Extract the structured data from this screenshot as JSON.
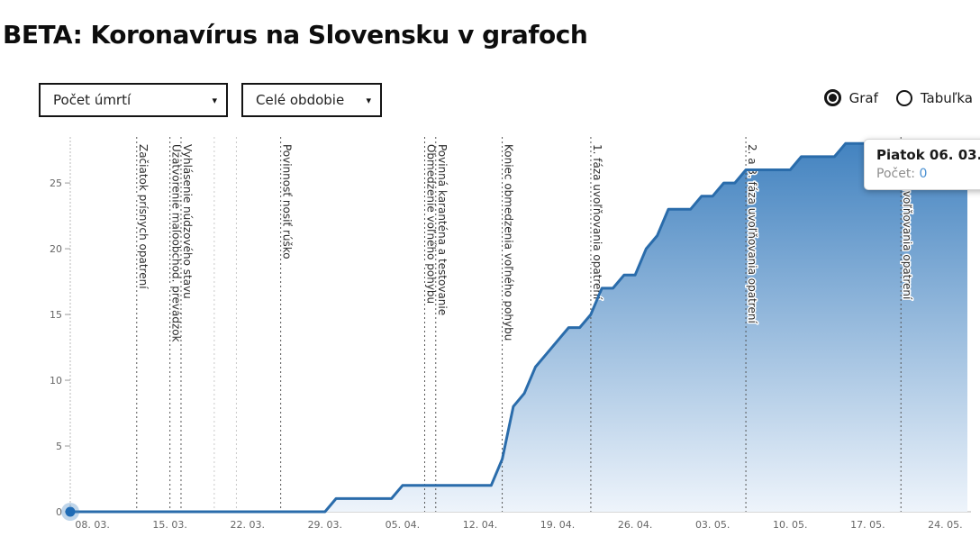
{
  "page": {
    "title": "BETA: Koronavírus na Slovensku v grafoch"
  },
  "controls": {
    "metric_select": {
      "value": "Počet úmrtí",
      "caret": "▾"
    },
    "period_select": {
      "value": "Celé obdobie",
      "caret": "▾"
    },
    "view_toggle": {
      "options": [
        {
          "label": "Graf",
          "selected": true
        },
        {
          "label": "Tabuľka",
          "selected": false
        }
      ]
    }
  },
  "tooltip": {
    "title": "Piatok 06. 03.",
    "label": "Počet:",
    "value": "0"
  },
  "chart_data": {
    "type": "area",
    "title": "Počet úmrtí — Celé obdobie",
    "xlabel": "",
    "ylabel": "",
    "ylim": [
      0,
      28.5
    ],
    "grid": false,
    "legend": "none",
    "y_ticks": [
      0,
      5,
      10,
      15,
      20,
      25
    ],
    "x_tick_indices": [
      2,
      9,
      16,
      23,
      30,
      37,
      44,
      51,
      58,
      65,
      72,
      79
    ],
    "x": [
      "06. 03.",
      "07. 03.",
      "08. 03.",
      "09. 03.",
      "10. 03.",
      "11. 03.",
      "12. 03.",
      "13. 03.",
      "14. 03.",
      "15. 03.",
      "16. 03.",
      "17. 03.",
      "18. 03.",
      "19. 03.",
      "20. 03.",
      "21. 03.",
      "22. 03.",
      "23. 03.",
      "24. 03.",
      "25. 03.",
      "26. 03.",
      "27. 03.",
      "28. 03.",
      "29. 03.",
      "30. 03.",
      "31. 03.",
      "01. 04.",
      "02. 04.",
      "03. 04.",
      "04. 04.",
      "05. 04.",
      "06. 04.",
      "07. 04.",
      "08. 04.",
      "09. 04.",
      "10. 04.",
      "11. 04.",
      "12. 04.",
      "13. 04.",
      "14. 04.",
      "15. 04.",
      "16. 04.",
      "17. 04.",
      "18. 04.",
      "19. 04.",
      "20. 04.",
      "21. 04.",
      "22. 04.",
      "23. 04.",
      "24. 04.",
      "25. 04.",
      "26. 04.",
      "27. 04.",
      "28. 04.",
      "29. 04.",
      "30. 04.",
      "01. 05.",
      "02. 05.",
      "03. 05.",
      "04. 05.",
      "05. 05.",
      "06. 05.",
      "07. 05.",
      "08. 05.",
      "09. 05.",
      "10. 05.",
      "11. 05.",
      "12. 05.",
      "13. 05.",
      "14. 05.",
      "15. 05.",
      "16. 05.",
      "17. 05.",
      "18. 05.",
      "19. 05.",
      "20. 05.",
      "21. 05.",
      "22. 05.",
      "23. 05.",
      "24. 05.",
      "25. 05.",
      "26. 05."
    ],
    "values": [
      0,
      0,
      0,
      0,
      0,
      0,
      0,
      0,
      0,
      0,
      0,
      0,
      0,
      0,
      0,
      0,
      0,
      0,
      0,
      0,
      0,
      0,
      0,
      0,
      1,
      1,
      1,
      1,
      1,
      1,
      2,
      2,
      2,
      2,
      2,
      2,
      2,
      2,
      2,
      4,
      8,
      9,
      11,
      12,
      13,
      14,
      14,
      15,
      17,
      17,
      18,
      18,
      20,
      21,
      23,
      23,
      23,
      24,
      24,
      25,
      25,
      26,
      26,
      26,
      26,
      26,
      27,
      27,
      27,
      27,
      28,
      28,
      28,
      28,
      28,
      28,
      28,
      28,
      28,
      28,
      28,
      28
    ],
    "annotations": [
      {
        "date": "12. 03.",
        "day_index": 6,
        "label": "Začiatok prísnych opatrení",
        "style": "dark"
      },
      {
        "date": "15. 03.",
        "day_index": 9,
        "label": "Uzatvorenie maloobchod. prevádzok",
        "style": "dark"
      },
      {
        "date": "16. 03.",
        "day_index": 10,
        "label": "Vyhlásenie núdzového stavu",
        "style": "dark"
      },
      {
        "date": "19. 03.",
        "day_index": 13,
        "label": "",
        "style": "light"
      },
      {
        "date": "21. 03.",
        "day_index": 15,
        "label": "",
        "style": "light"
      },
      {
        "date": "25. 03.",
        "day_index": 19,
        "label": "Povinnosť nosiť rúško",
        "style": "dark"
      },
      {
        "date": "07. 04.",
        "day_index": 32,
        "label": "Obmedzenie voľného pohybu",
        "style": "dark"
      },
      {
        "date": "08. 04.",
        "day_index": 33,
        "label": "Povinná karanténa a testovanie",
        "style": "dark"
      },
      {
        "date": "14. 04.",
        "day_index": 39,
        "label": "Koniec obmedzenia voľného pohybu",
        "style": "dark"
      },
      {
        "date": "22. 04.",
        "day_index": 47,
        "label": "1. fáza uvoľňovania opatrení",
        "style": "dark"
      },
      {
        "date": "06. 05.",
        "day_index": 61,
        "label": "2. a 3. fáza uvoľňovania opatrení",
        "style": "dark"
      },
      {
        "date": "20. 05.",
        "day_index": 75,
        "label": "4. fáza uvoľňovania opatrení",
        "style": "dark"
      }
    ],
    "selected_point": {
      "index": 0,
      "date_label": "Piatok 06. 03.",
      "value": 0
    },
    "colors": {
      "line": "#2a6cab",
      "area_top": "#4383c0",
      "area_bottom": "#eef4fb",
      "marker": "#1f6bb5",
      "halo": "rgba(72,134,196,0.35)",
      "annotation_dark": "#555555",
      "annotation_light": "#c9c9c9",
      "axis": "#cccccc",
      "tick_text": "#666666"
    }
  }
}
